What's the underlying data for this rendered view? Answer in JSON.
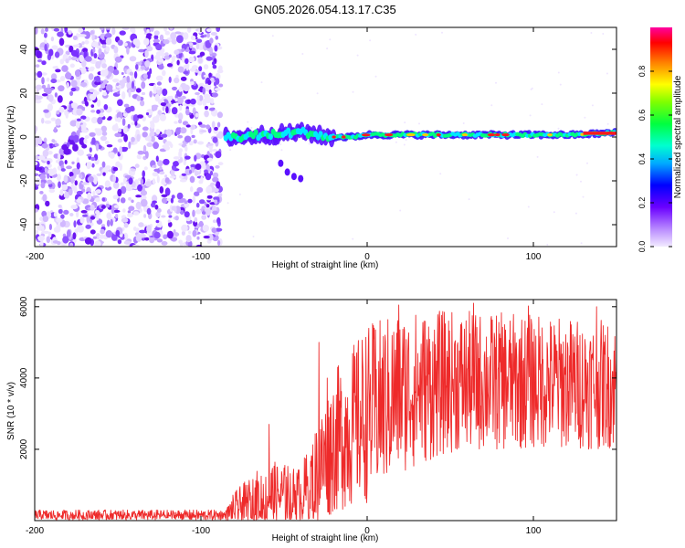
{
  "title": "GN05.2026.054.13.17.C35",
  "chart_data": [
    {
      "type": "heatmap",
      "title": "GN05.2026.054.13.17.C35",
      "xlabel": "Height of straight line (km)",
      "ylabel": "Frequency (Hz)",
      "xlim": [
        -200,
        150
      ],
      "ylim": [
        -50,
        50
      ],
      "xticks": [
        "-200",
        "-100",
        "0",
        "100"
      ],
      "yticks": [
        "-40",
        "-20",
        "0",
        "20",
        "40"
      ],
      "noise_region_x": [
        -200,
        -88
      ],
      "signal_track": [
        {
          "x": -85,
          "y": 0
        },
        {
          "x": -75,
          "y": 0
        },
        {
          "x": -65,
          "y": 1
        },
        {
          "x": -55,
          "y": 1
        },
        {
          "x": -45,
          "y": 2
        },
        {
          "x": -35,
          "y": 2
        },
        {
          "x": -25,
          "y": 0
        },
        {
          "x": -10,
          "y": 0
        },
        {
          "x": 0,
          "y": 1
        },
        {
          "x": 25,
          "y": 1
        },
        {
          "x": 50,
          "y": 1
        },
        {
          "x": 75,
          "y": 1
        },
        {
          "x": 100,
          "y": 1
        },
        {
          "x": 125,
          "y": 1
        },
        {
          "x": 150,
          "y": 2
        }
      ],
      "colorbar": {
        "label": "Normalized spectral amplitude",
        "range": [
          0.0,
          1.0
        ],
        "ticks": [
          "0.0",
          "0.2",
          "0.4",
          "0.6",
          "0.8"
        ]
      }
    },
    {
      "type": "line",
      "xlabel": "Height of straight line (km)",
      "ylabel": "SNR (10 * v/v)",
      "xlim": [
        -200,
        150
      ],
      "ylim": [
        0,
        6200
      ],
      "xticks": [
        "-200",
        "-100",
        "0",
        "100"
      ],
      "yticks": [
        "2000",
        "4000",
        "6000"
      ],
      "color": "#ee2a2a",
      "envelope": [
        {
          "x": -200,
          "base": 150,
          "amp": 150
        },
        {
          "x": -85,
          "base": 150,
          "amp": 150
        },
        {
          "x": -80,
          "base": 300,
          "amp": 500
        },
        {
          "x": -60,
          "base": 700,
          "amp": 1000
        },
        {
          "x": -50,
          "base": 700,
          "amp": 900
        },
        {
          "x": -40,
          "base": 700,
          "amp": 800
        },
        {
          "x": -30,
          "base": 1300,
          "amp": 1500
        },
        {
          "x": -20,
          "base": 2200,
          "amp": 2000
        },
        {
          "x": 0,
          "base": 3000,
          "amp": 2500
        },
        {
          "x": 20,
          "base": 3600,
          "amp": 2300
        },
        {
          "x": 50,
          "base": 3900,
          "amp": 2000
        },
        {
          "x": 100,
          "base": 3900,
          "amp": 1900
        },
        {
          "x": 150,
          "base": 3800,
          "amp": 1800
        }
      ],
      "peaks": [
        {
          "x": 19,
          "y": 6050
        },
        {
          "x": 64,
          "y": 6100
        },
        {
          "x": 97,
          "y": 6020
        },
        {
          "x": 138,
          "y": 6000
        },
        {
          "x": -29,
          "y": 5000
        },
        {
          "x": -59,
          "y": 2700
        },
        {
          "x": -24,
          "y": 4000
        },
        {
          "x": 4,
          "y": 5100
        }
      ]
    }
  ]
}
